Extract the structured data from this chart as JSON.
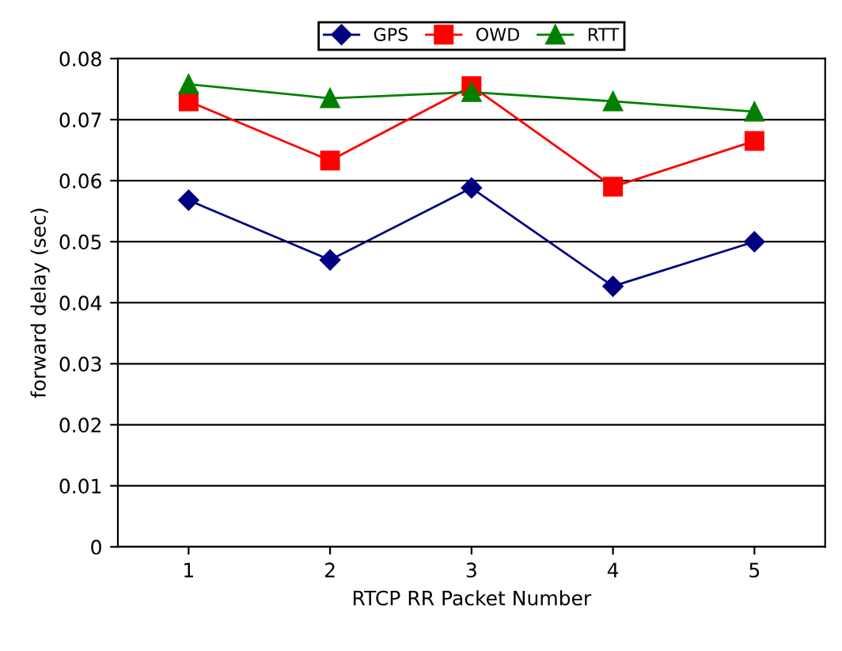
{
  "chart_data": {
    "type": "line",
    "xlabel": "RTCP RR Packet Number",
    "ylabel": "forward delay (sec)",
    "categories": [
      "1",
      "2",
      "3",
      "4",
      "5"
    ],
    "series": [
      {
        "name": "GPS",
        "color": "#000080",
        "marker": "diamond",
        "values": [
          0.0568,
          0.047,
          0.0588,
          0.0427,
          0.05
        ]
      },
      {
        "name": "OWD",
        "color": "#ff0000",
        "marker": "square",
        "values": [
          0.073,
          0.0633,
          0.0755,
          0.059,
          0.0665
        ]
      },
      {
        "name": "RTT",
        "color": "#008000",
        "marker": "triangle",
        "values": [
          0.0758,
          0.0735,
          0.0745,
          0.073,
          0.0713
        ]
      }
    ],
    "ylim": [
      0,
      0.08
    ],
    "yticks": [
      0,
      0.01,
      0.02,
      0.03,
      0.04,
      0.05,
      0.06,
      0.07,
      0.08
    ],
    "grid": "y",
    "legend": "top"
  }
}
